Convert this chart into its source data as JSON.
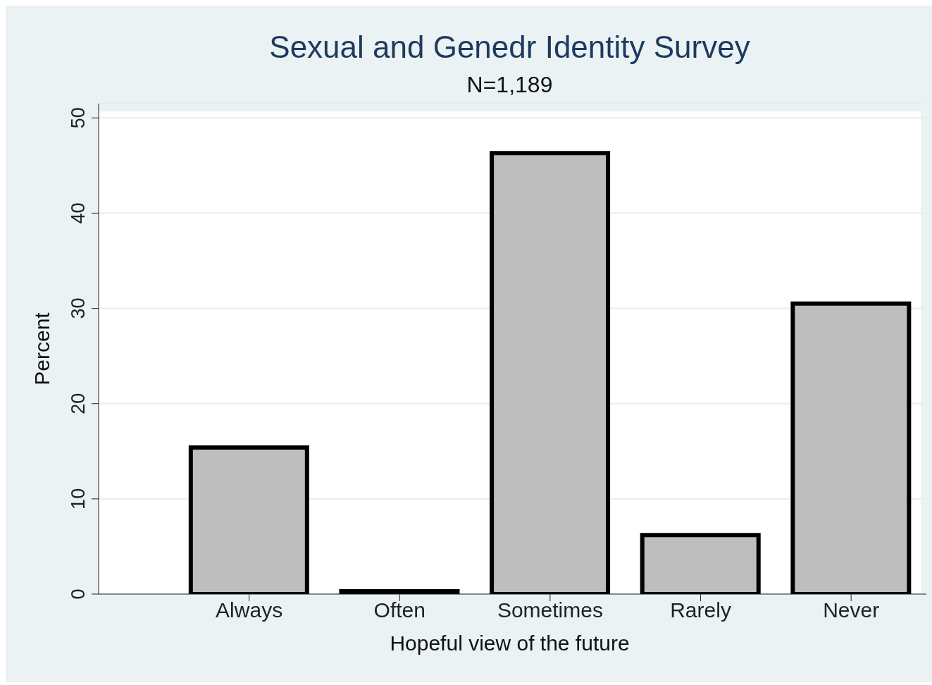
{
  "chart_data": {
    "type": "bar",
    "title": "Sexual and Genedr Identity Survey",
    "subtitle": "N=1,189",
    "categories": [
      "Always",
      "Often",
      "Sometimes",
      "Rarely",
      "Never"
    ],
    "values": [
      15.4,
      0.3,
      46.3,
      6.2,
      30.5
    ],
    "color": "#bebebe",
    "xlabel": "Hopeful view of the future",
    "ylabel": "Percent",
    "ylim": [
      0,
      51.5
    ],
    "yticks": [
      0,
      10,
      20,
      30,
      40,
      50
    ],
    "grid": "y"
  }
}
